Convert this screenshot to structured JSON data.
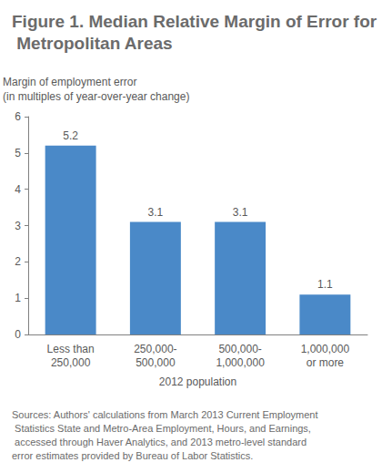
{
  "chart_data": {
    "type": "bar",
    "title": "Figure 1. Median Relative Margin of Error for Metropolitan Areas",
    "y_label": "Margin of employment error\n(in multiples of year-over-year change)",
    "x_label": "2012 population",
    "categories": [
      "Less than\n250,000",
      "250,000-\n500,000",
      "500,000-\n1,000,000",
      "1,000,000\nor more"
    ],
    "values": [
      5.2,
      3.1,
      3.1,
      1.1
    ],
    "color": "#4a89c8",
    "ylim": [
      0,
      6
    ],
    "yticks": [
      0,
      1,
      2,
      3,
      4,
      5,
      6
    ],
    "grid": false,
    "data_labels": true,
    "note": "Sources: Authors' calculations from March 2013 Current Employment Statistics State and Metro-Area Employment, Hours, and Earnings, accessed through Haver Analytics, and 2013 metro-level standard error estimates provided by Bureau of Labor Statistics."
  }
}
